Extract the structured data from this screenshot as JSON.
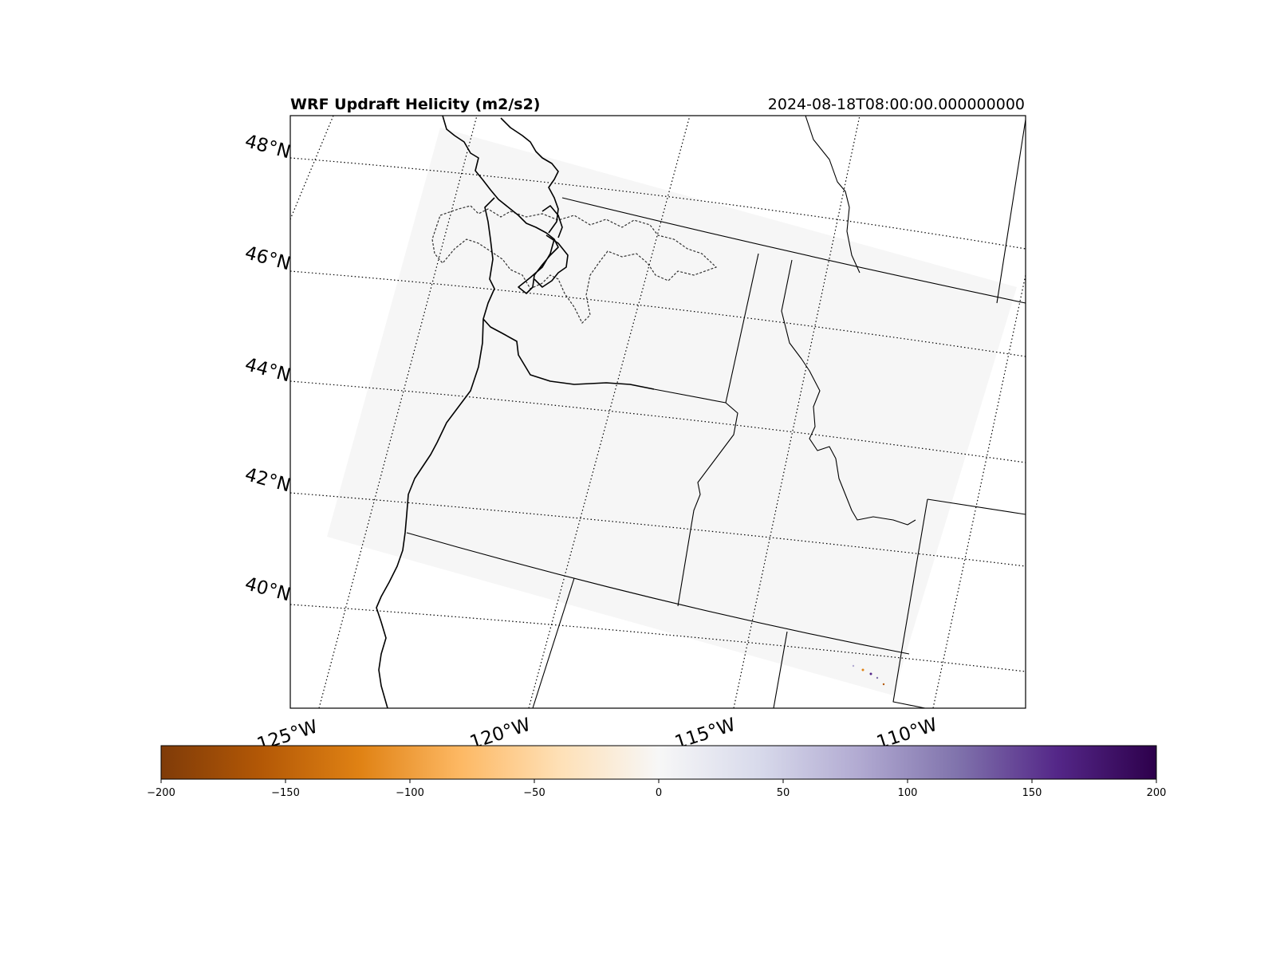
{
  "figure": {
    "title": "WRF Updraft Helicity (m2/s2)",
    "valid_time": "2024-08-18T08:00:00.000000000"
  },
  "map": {
    "latitude_labels": [
      "48°N",
      "46°N",
      "44°N",
      "42°N",
      "40°N"
    ],
    "longitude_labels": [
      "125°W",
      "120°W",
      "115°W",
      "110°W"
    ],
    "field_fill_color": "#f6f6f6",
    "features": [
      "coastline",
      "state-borders",
      "international-border",
      "lat-lon-gridlines"
    ]
  },
  "colorbar": {
    "min": -200,
    "max": 200,
    "ticks": [
      "−200",
      "−150",
      "−100",
      "−50",
      "0",
      "50",
      "100",
      "150",
      "200"
    ],
    "colormap": "PuOr",
    "stops": [
      "#7f3b08",
      "#b35806",
      "#e08214",
      "#fdb863",
      "#fee0b6",
      "#f7f7f7",
      "#d8daeb",
      "#b2abd2",
      "#8073ac",
      "#542788",
      "#2d004b"
    ]
  }
}
